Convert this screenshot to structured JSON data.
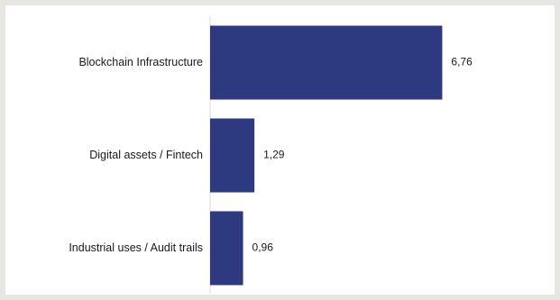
{
  "chart_data": {
    "type": "bar",
    "orientation": "horizontal",
    "categories": [
      "Blockchain Infrastructure",
      "Digital assets / Fintech",
      "Industrial uses / Audit trails"
    ],
    "values": [
      6.76,
      1.29,
      0.96
    ],
    "value_labels": [
      "6,76",
      "1,29",
      "0,96"
    ],
    "title": "",
    "xlabel": "",
    "ylabel": "",
    "xlim": [
      0,
      7.3
    ],
    "grid": false,
    "legend": false,
    "colors": {
      "bar": "#2e3a80",
      "axis": "#d9d9d9",
      "frame_background": "#e8e6e2",
      "plot_background": "#ffffff"
    }
  }
}
